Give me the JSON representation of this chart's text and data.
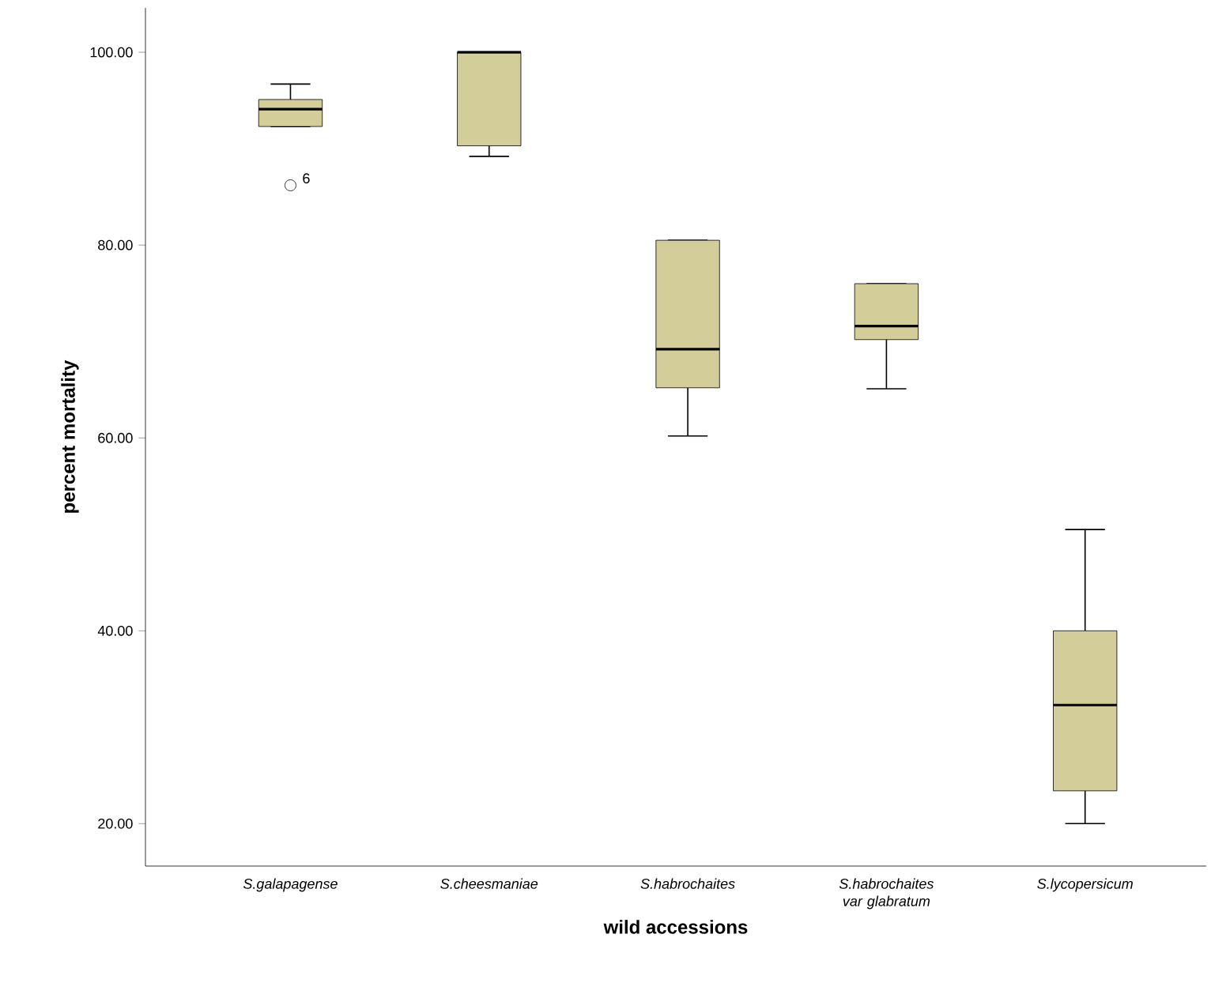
{
  "chart_data": {
    "type": "box",
    "xlabel": "wild accessions",
    "ylabel": "percent mortality",
    "categories": [
      "S.galapagense",
      "S.cheesmaniae",
      "S.habrochaites",
      "S.habrochaites var glabratum",
      "S.lycopersicum"
    ],
    "color": "#d3cd9a",
    "boxes": [
      {
        "low": 92.3,
        "q1": 92.3,
        "median": 94.1,
        "q3": 95.1,
        "high": 96.7,
        "outliers": [
          86.2
        ]
      },
      {
        "low": 89.2,
        "q1": 90.3,
        "median": 100,
        "q3": 100,
        "high": 100
      },
      {
        "low": 60.2,
        "q1": 65.2,
        "median": 69.2,
        "q3": 80.5,
        "high": 80.5
      },
      {
        "low": 65.1,
        "q1": 70.2,
        "median": 71.6,
        "q3": 76,
        "high": 76
      },
      {
        "low": 20,
        "q1": 23.4,
        "median": 32.3,
        "q3": 40,
        "high": 50.5
      }
    ],
    "ylim": [
      15.6,
      104.6
    ],
    "yticks": [
      {
        "value": 20,
        "label": "20.00"
      },
      {
        "value": 40,
        "label": "40.00"
      },
      {
        "value": 60,
        "label": "60.00"
      },
      {
        "value": 80,
        "label": "80.00"
      },
      {
        "value": 100,
        "label": "100.00"
      }
    ],
    "annotations": [
      "6"
    ]
  }
}
